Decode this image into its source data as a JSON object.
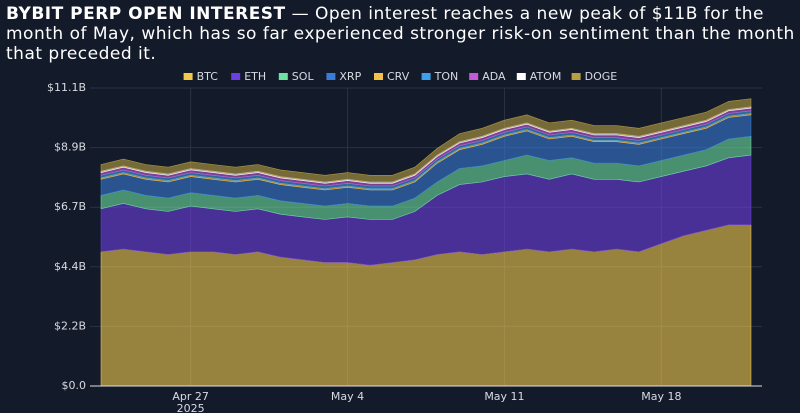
{
  "chart_data": {
    "type": "stacked_area",
    "title": "BYBIT PERP OPEN INTEREST",
    "subtitle": "— Open interest reaches a new peak of $11B for the month of May, which has so far experienced stronger risk-on sentiment than the month that preceded it.",
    "x": [
      "2025-04-23",
      "2025-04-24",
      "2025-04-25",
      "2025-04-26",
      "2025-04-27",
      "2025-04-28",
      "2025-04-29",
      "2025-04-30",
      "2025-05-01",
      "2025-05-02",
      "2025-05-03",
      "2025-05-04",
      "2025-05-05",
      "2025-05-06",
      "2025-05-07",
      "2025-05-08",
      "2025-05-09",
      "2025-05-10",
      "2025-05-11",
      "2025-05-12",
      "2025-05-13",
      "2025-05-14",
      "2025-05-15",
      "2025-05-16",
      "2025-05-17",
      "2025-05-18",
      "2025-05-19",
      "2025-05-20",
      "2025-05-21",
      "2025-05-22"
    ],
    "xlim": [
      "2025-04-23",
      "2025-05-22"
    ],
    "xticks": [
      {
        "value": "2025-04-27",
        "label": "Apr 27",
        "sublabel": "2025"
      },
      {
        "value": "2025-05-04",
        "label": "May 4"
      },
      {
        "value": "2025-05-11",
        "label": "May 11"
      },
      {
        "value": "2025-05-18",
        "label": "May 18"
      }
    ],
    "ylim": [
      0,
      11.1
    ],
    "yticks": [
      {
        "value": 0,
        "label": "$0.0"
      },
      {
        "value": 2.22,
        "label": "$2.2B"
      },
      {
        "value": 4.44,
        "label": "$4.4B"
      },
      {
        "value": 6.66,
        "label": "$6.7B"
      },
      {
        "value": 8.88,
        "label": "$8.9B"
      },
      {
        "value": 11.1,
        "label": "$11.1B"
      }
    ],
    "grid": true,
    "series": [
      {
        "name": "BTC",
        "color": "#f2c94c",
        "values": [
          5.0,
          5.1,
          5.0,
          4.9,
          5.0,
          5.0,
          4.9,
          5.0,
          4.8,
          4.7,
          4.6,
          4.6,
          4.5,
          4.6,
          4.7,
          4.9,
          5.0,
          4.9,
          5.0,
          5.1,
          5.0,
          5.1,
          5.0,
          5.1,
          5.0,
          5.3,
          5.6,
          5.8,
          6.0,
          6.0
        ]
      },
      {
        "name": "ETH",
        "color": "#6c3fe0",
        "values": [
          1.6,
          1.7,
          1.6,
          1.6,
          1.7,
          1.6,
          1.6,
          1.6,
          1.6,
          1.6,
          1.6,
          1.7,
          1.7,
          1.6,
          1.8,
          2.2,
          2.5,
          2.7,
          2.8,
          2.8,
          2.7,
          2.8,
          2.7,
          2.6,
          2.6,
          2.5,
          2.4,
          2.4,
          2.5,
          2.6
        ]
      },
      {
        "name": "SOL",
        "color": "#6ee0a0",
        "values": [
          0.5,
          0.5,
          0.5,
          0.5,
          0.5,
          0.5,
          0.5,
          0.5,
          0.5,
          0.5,
          0.5,
          0.5,
          0.5,
          0.5,
          0.5,
          0.5,
          0.6,
          0.6,
          0.6,
          0.7,
          0.7,
          0.6,
          0.6,
          0.6,
          0.6,
          0.6,
          0.6,
          0.6,
          0.7,
          0.7
        ]
      },
      {
        "name": "XRP",
        "color": "#3a7bd5",
        "values": [
          0.6,
          0.6,
          0.6,
          0.6,
          0.6,
          0.6,
          0.6,
          0.6,
          0.6,
          0.6,
          0.6,
          0.6,
          0.6,
          0.6,
          0.6,
          0.7,
          0.7,
          0.8,
          0.9,
          0.9,
          0.8,
          0.8,
          0.8,
          0.8,
          0.8,
          0.8,
          0.8,
          0.8,
          0.8,
          0.8
        ]
      },
      {
        "name": "CRV",
        "color": "#f4c04a",
        "values": [
          0.05,
          0.05,
          0.05,
          0.05,
          0.05,
          0.05,
          0.05,
          0.05,
          0.05,
          0.05,
          0.05,
          0.05,
          0.05,
          0.05,
          0.05,
          0.05,
          0.05,
          0.05,
          0.05,
          0.05,
          0.05,
          0.05,
          0.05,
          0.05,
          0.05,
          0.05,
          0.05,
          0.05,
          0.05,
          0.05
        ]
      },
      {
        "name": "TON",
        "color": "#3ea0e8",
        "values": [
          0.1,
          0.1,
          0.1,
          0.1,
          0.1,
          0.1,
          0.1,
          0.1,
          0.1,
          0.1,
          0.1,
          0.1,
          0.1,
          0.1,
          0.1,
          0.1,
          0.1,
          0.1,
          0.1,
          0.1,
          0.1,
          0.1,
          0.1,
          0.1,
          0.1,
          0.1,
          0.1,
          0.1,
          0.1,
          0.1
        ]
      },
      {
        "name": "ADA",
        "color": "#c45ad6",
        "values": [
          0.1,
          0.1,
          0.1,
          0.1,
          0.1,
          0.1,
          0.1,
          0.1,
          0.1,
          0.1,
          0.1,
          0.1,
          0.1,
          0.1,
          0.1,
          0.1,
          0.1,
          0.1,
          0.1,
          0.1,
          0.1,
          0.1,
          0.1,
          0.1,
          0.1,
          0.1,
          0.1,
          0.1,
          0.1,
          0.1
        ]
      },
      {
        "name": "ATOM",
        "color": "#ffffff",
        "values": [
          0.05,
          0.05,
          0.05,
          0.05,
          0.05,
          0.05,
          0.05,
          0.05,
          0.05,
          0.05,
          0.05,
          0.05,
          0.05,
          0.05,
          0.05,
          0.05,
          0.05,
          0.05,
          0.05,
          0.05,
          0.05,
          0.05,
          0.05,
          0.05,
          0.05,
          0.05,
          0.05,
          0.05,
          0.05,
          0.05
        ]
      },
      {
        "name": "DOGE",
        "color": "#b8a042",
        "values": [
          0.25,
          0.25,
          0.25,
          0.25,
          0.25,
          0.25,
          0.25,
          0.25,
          0.25,
          0.25,
          0.25,
          0.25,
          0.25,
          0.25,
          0.25,
          0.25,
          0.3,
          0.3,
          0.3,
          0.3,
          0.3,
          0.3,
          0.3,
          0.3,
          0.3,
          0.3,
          0.3,
          0.3,
          0.3,
          0.3
        ]
      }
    ]
  }
}
